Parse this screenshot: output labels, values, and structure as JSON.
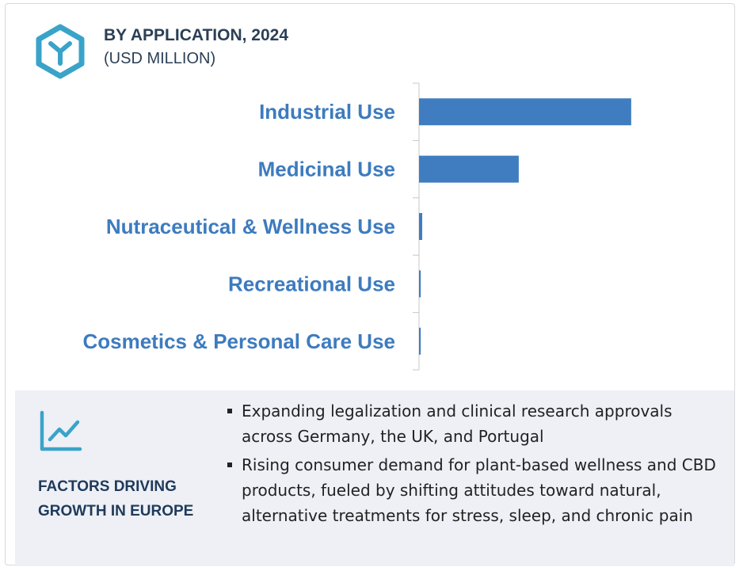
{
  "header": {
    "title": "BY APPLICATION, 2024",
    "subtitle": "(USD MILLION)",
    "logo_icon": "hexagon-y-logo-icon"
  },
  "chart_data": {
    "type": "bar",
    "orientation": "horizontal",
    "title": "BY APPLICATION, 2024",
    "subtitle": "(USD MILLION)",
    "categories": [
      "Industrial Use",
      "Medicinal Use",
      "Nutraceutical & Wellness Use",
      "Recreational Use",
      "Cosmetics & Personal Care Use"
    ],
    "values": [
      100,
      47,
      1.5,
      0.8,
      0.8
    ],
    "xlim": [
      0,
      140
    ],
    "value_axis_shown": false,
    "grid": false,
    "legend": "none",
    "bar_color": "#3f7dc0",
    "label_color": "#3d7bbf"
  },
  "footer": {
    "icon": "trend-chart-icon",
    "heading": "FACTORS DRIVING GROWTH IN EUROPE",
    "bullets": [
      "Expanding legalization and clinical research approvals across Germany, the UK, and Portugal",
      "Rising consumer demand for plant-based wellness and CBD products, fueled by shifting attitudes toward natural, alternative treatments for stress, sleep, and chronic pain"
    ]
  }
}
